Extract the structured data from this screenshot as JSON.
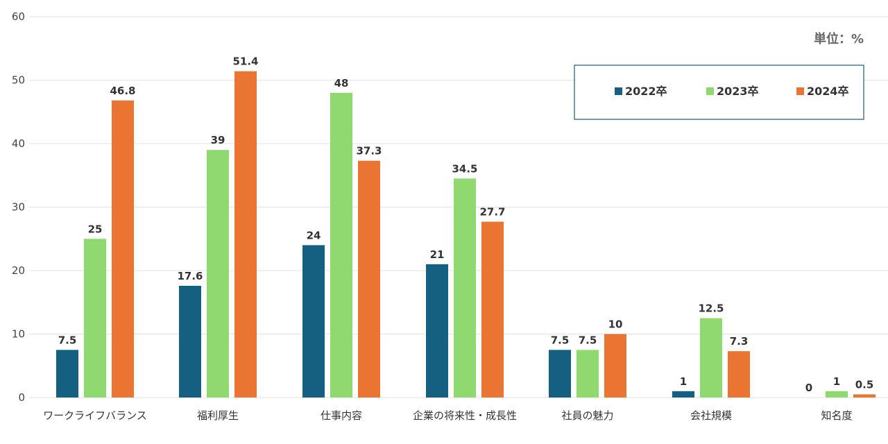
{
  "chart_data": {
    "type": "bar",
    "unit_label": "単位：%",
    "categories": [
      "ワークライフバランス",
      "福利厚生",
      "仕事内容",
      "企業の将来性・成長性",
      "社員の魅力",
      "会社規模",
      "知名度"
    ],
    "series": [
      {
        "name": "2022卒",
        "color": "#155f80",
        "values": [
          7.5,
          17.6,
          24,
          21,
          7.5,
          1,
          0
        ]
      },
      {
        "name": "2023卒",
        "color": "#8fd970",
        "values": [
          25,
          39,
          48,
          34.5,
          7.5,
          12.5,
          1
        ]
      },
      {
        "name": "2024卒",
        "color": "#ea7431",
        "values": [
          46.8,
          51.4,
          37.3,
          27.7,
          10,
          7.3,
          0.5
        ]
      }
    ],
    "ylim": [
      0,
      60
    ],
    "yticks": [
      0,
      10,
      20,
      30,
      40,
      50,
      60
    ],
    "grid": true,
    "legend_position": "top-right",
    "legend_border_color": "#1b5a6e"
  }
}
